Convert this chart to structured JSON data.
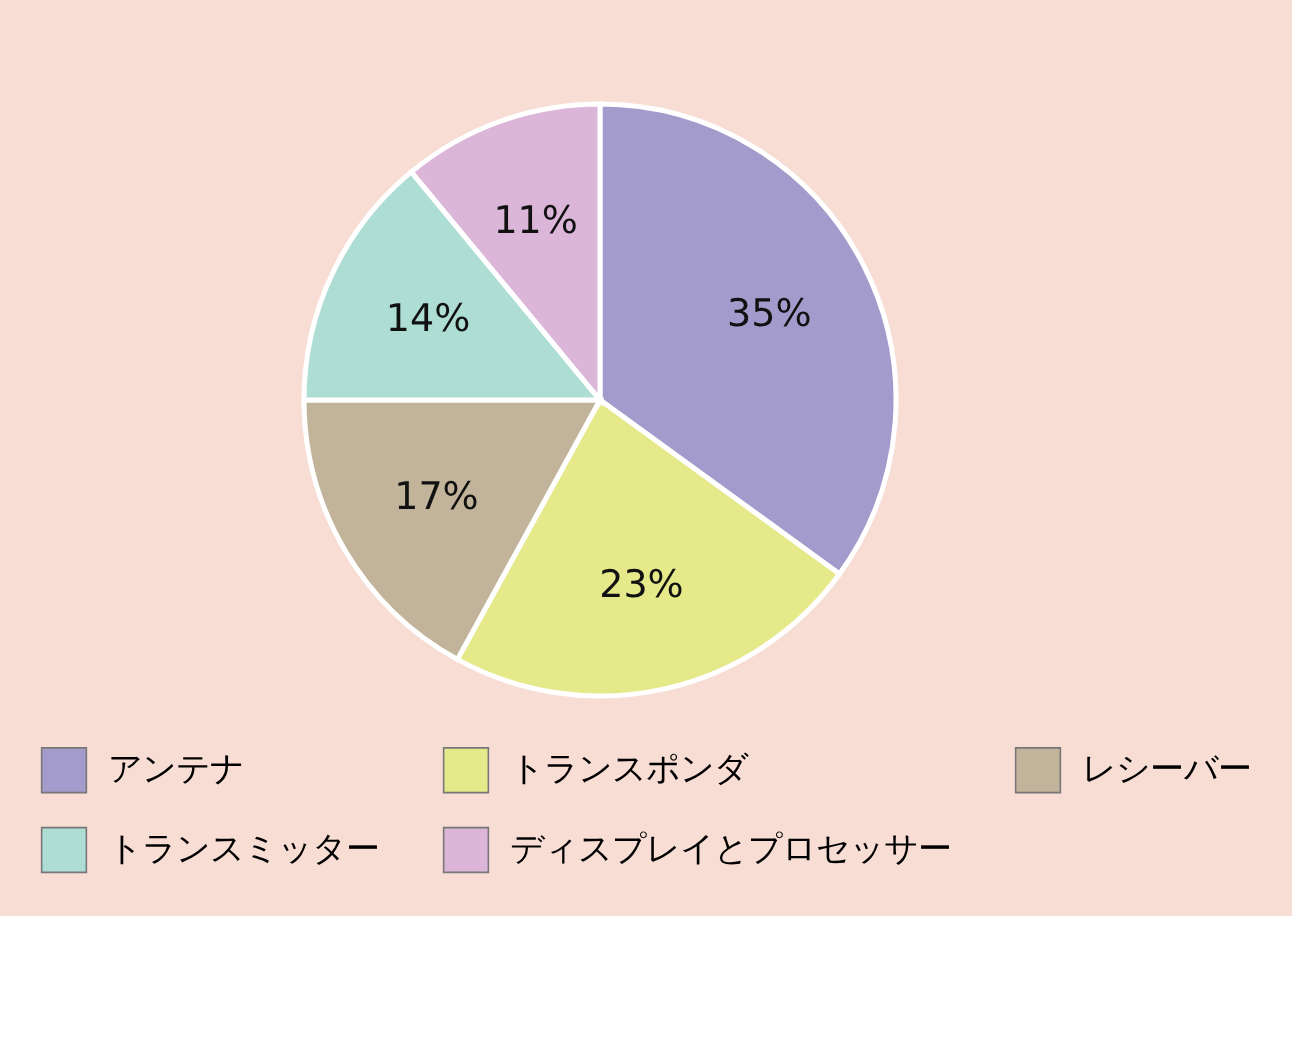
{
  "chart_data": {
    "type": "pie",
    "categories": [
      "アンテナ",
      "トランスポンダ",
      "レシーバー",
      "トランスミッター",
      "ディスプレイとプロセッサー"
    ],
    "values": [
      35,
      23,
      17,
      14,
      11
    ],
    "value_labels": [
      "35%",
      "23%",
      "17%",
      "14%",
      "11%"
    ],
    "colors": [
      "#a39bcc",
      "#e6e98a",
      "#c2b49a",
      "#aeddd4",
      "#dbb6d8"
    ],
    "legend": "bottom"
  }
}
